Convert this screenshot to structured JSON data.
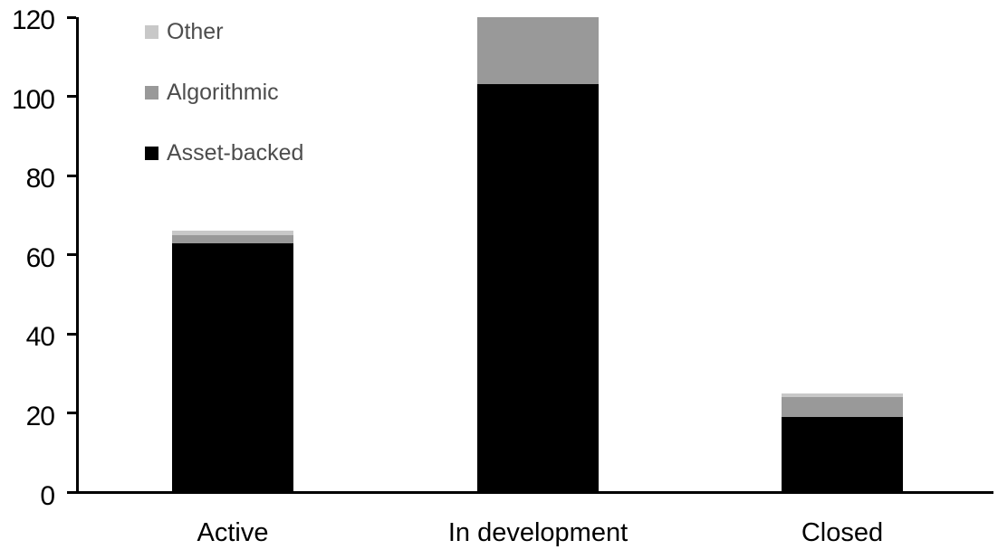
{
  "chart_data": {
    "type": "bar",
    "stacked": true,
    "title": "",
    "xlabel": "",
    "ylabel": "",
    "categories": [
      "Active",
      "In development",
      "Closed"
    ],
    "series": [
      {
        "name": "Asset-backed",
        "color": "#000000",
        "values": [
          63,
          103,
          19
        ]
      },
      {
        "name": "Algorithmic",
        "color": "#999999",
        "values": [
          2,
          17,
          5
        ]
      },
      {
        "name": "Other",
        "color": "#c8c8c8",
        "values": [
          1,
          0,
          1
        ]
      }
    ],
    "totals": [
      66,
      120,
      25
    ],
    "ylim": [
      0,
      120
    ],
    "yticks": [
      "0",
      "20",
      "40",
      "60",
      "80",
      "100",
      "120"
    ],
    "ytick_values": [
      0,
      20,
      40,
      60,
      80,
      100,
      120
    ],
    "grid": false,
    "legend_position": "top-left-inside",
    "legend_order": [
      "Other",
      "Algorithmic",
      "Asset-backed"
    ],
    "colors": {
      "axis": "#000000",
      "tick_labels": "#000000",
      "category_labels": "#000000",
      "legend_text": "#4d4d4d",
      "background": "#ffffff"
    }
  }
}
